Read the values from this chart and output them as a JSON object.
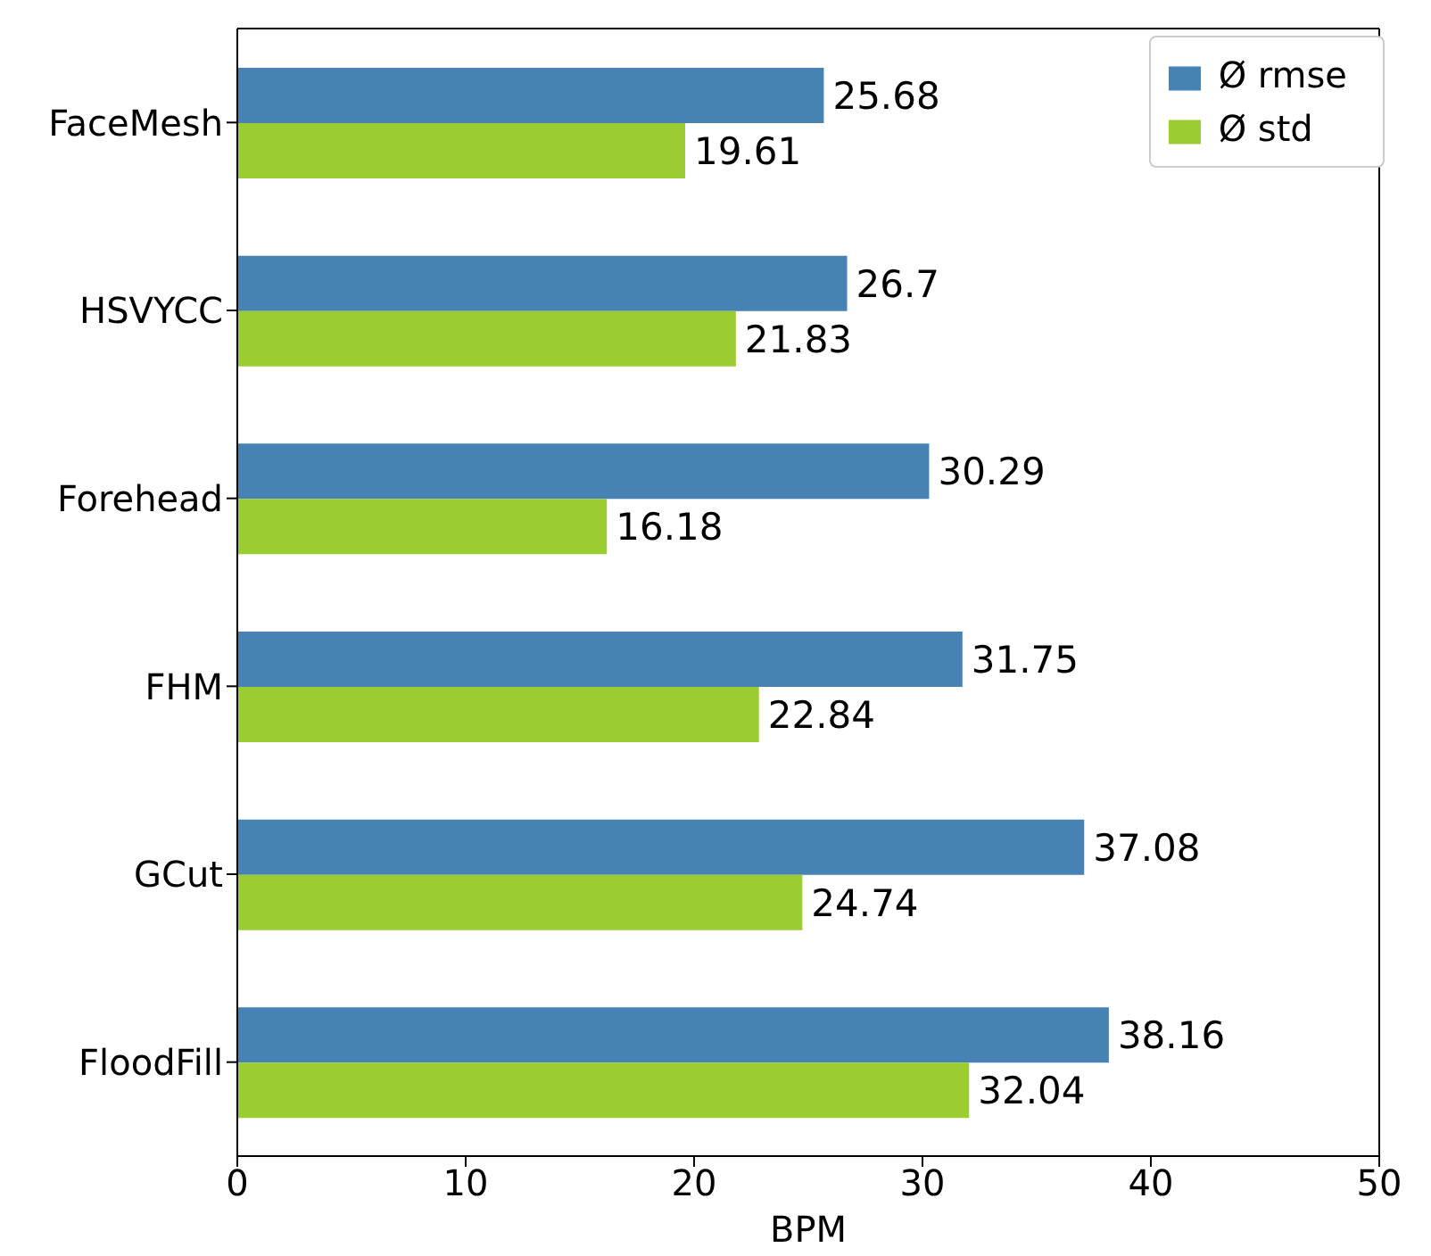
{
  "chart_data": {
    "type": "bar",
    "orientation": "horizontal",
    "xlabel": "BPM",
    "categories": [
      "FaceMesh",
      "HSVYCC",
      "Forehead",
      "FHM",
      "GCut",
      "FloodFill"
    ],
    "series": [
      {
        "name": "Ø rmse",
        "color": "#4682b4",
        "values": [
          25.68,
          26.7,
          30.29,
          31.75,
          37.08,
          38.16
        ]
      },
      {
        "name": "Ø std",
        "color": "#9acd32",
        "values": [
          19.61,
          21.83,
          16.18,
          22.84,
          24.74,
          32.04
        ]
      }
    ],
    "xlim": [
      0,
      50
    ],
    "xticks": [
      0,
      10,
      20,
      30,
      40,
      50
    ],
    "data_labels": true,
    "legend": "top right",
    "grid": false
  }
}
